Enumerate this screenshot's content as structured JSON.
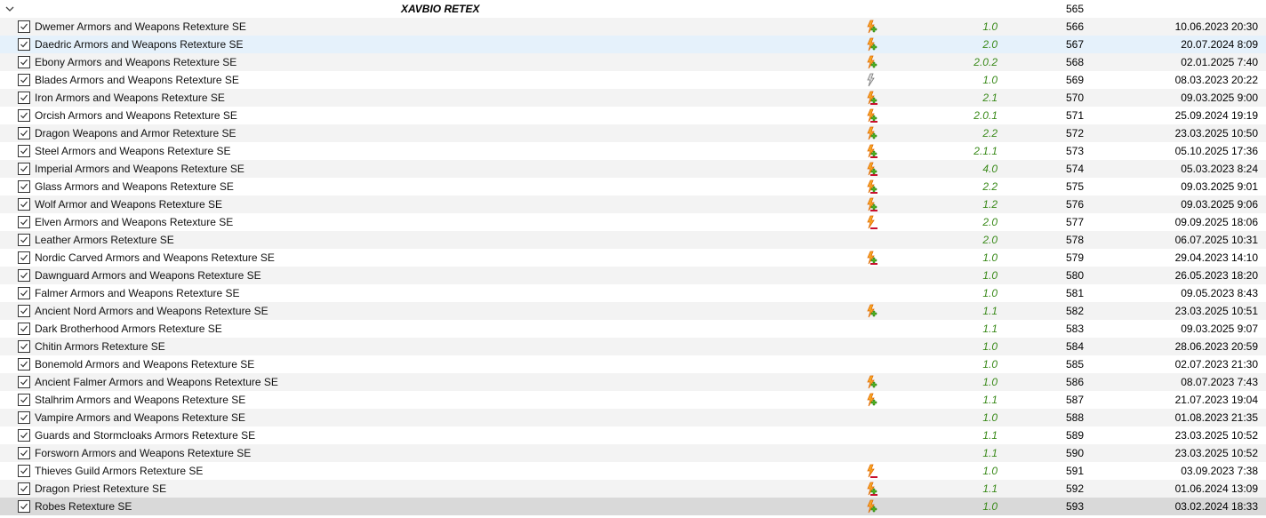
{
  "separator": {
    "title": "XAVBIO RETEX",
    "priority": "565"
  },
  "colors": {
    "version": "#3a8a1a",
    "selected_row": "#e5f1fb",
    "hover_row": "#d9d9d9",
    "alt_row": "#f3f3f3"
  },
  "mods": [
    {
      "name": "Dwemer Armors and Weapons Retexture SE",
      "flag": "flash-plus-icon",
      "version": "1.0",
      "priority": "566",
      "date": "10.06.2023 20:30"
    },
    {
      "name": "Daedric Armors and Weapons Retexture SE",
      "flag": "flash-plus-icon",
      "version": "2.0",
      "priority": "567",
      "date": "20.07.2024 8:09"
    },
    {
      "name": "Ebony Armors and Weapons Retexture SE",
      "flag": "flash-plus-icon",
      "version": "2.0.2",
      "priority": "568",
      "date": "02.01.2025 7:40"
    },
    {
      "name": "Blades Armors and Weapons Retexture SE",
      "flag": "flash-gray-icon",
      "version": "1.0",
      "priority": "569",
      "date": "08.03.2023 20:22"
    },
    {
      "name": "Iron Armors and Weapons Retexture SE",
      "flag": "flash-plus-minus-icon",
      "version": "2.1",
      "priority": "570",
      "date": "09.03.2025 9:00"
    },
    {
      "name": "Orcish Armors and Weapons Retexture SE",
      "flag": "flash-plus-minus-icon",
      "version": "2.0.1",
      "priority": "571",
      "date": "25.09.2024 19:19"
    },
    {
      "name": "Dragon Weapons and Armor Retexture SE",
      "flag": "flash-plus-icon",
      "version": "2.2",
      "priority": "572",
      "date": "23.03.2025 10:50"
    },
    {
      "name": "Steel Armors and Weapons Retexture SE",
      "flag": "flash-plus-minus-icon",
      "version": "2.1.1",
      "priority": "573",
      "date": "05.10.2025 17:36"
    },
    {
      "name": "Imperial Armors and Weapons Retexture SE",
      "flag": "flash-plus-minus-icon",
      "version": "4.0",
      "priority": "574",
      "date": "05.03.2023 8:24"
    },
    {
      "name": "Glass Armors and Weapons Retexture SE",
      "flag": "flash-plus-minus-icon",
      "version": "2.2",
      "priority": "575",
      "date": "09.03.2025 9:01"
    },
    {
      "name": "Wolf Armor and Weapons Retexture SE",
      "flag": "flash-plus-minus-icon",
      "version": "1.2",
      "priority": "576",
      "date": "09.03.2025 9:06"
    },
    {
      "name": "Elven Armors and Weapons Retexture SE",
      "flag": "flash-minus-icon",
      "version": "2.0",
      "priority": "577",
      "date": "09.09.2025 18:06"
    },
    {
      "name": "Leather Armors Retexture SE",
      "flag": "",
      "version": "2.0",
      "priority": "578",
      "date": "06.07.2025 10:31"
    },
    {
      "name": "Nordic Carved Armors and Weapons Retexture SE",
      "flag": "flash-plus-minus-icon",
      "version": "1.0",
      "priority": "579",
      "date": "29.04.2023 14:10"
    },
    {
      "name": "Dawnguard Armors and Weapons Retexture SE",
      "flag": "",
      "version": "1.0",
      "priority": "580",
      "date": "26.05.2023 18:20"
    },
    {
      "name": "Falmer Armors and Weapons Retexture SE",
      "flag": "",
      "version": "1.0",
      "priority": "581",
      "date": "09.05.2023 8:43"
    },
    {
      "name": "Ancient Nord Armors and Weapons Retexture SE",
      "flag": "flash-plus-icon",
      "version": "1.1",
      "priority": "582",
      "date": "23.03.2025 10:51"
    },
    {
      "name": "Dark Brotherhood Armors Retexture SE",
      "flag": "",
      "version": "1.1",
      "priority": "583",
      "date": "09.03.2025 9:07"
    },
    {
      "name": "Chitin Armors Retexture SE",
      "flag": "",
      "version": "1.0",
      "priority": "584",
      "date": "28.06.2023 20:59"
    },
    {
      "name": "Bonemold Armors and Weapons Retexture SE",
      "flag": "",
      "version": "1.0",
      "priority": "585",
      "date": "02.07.2023 21:30"
    },
    {
      "name": "Ancient Falmer Armors and Weapons Retexture SE",
      "flag": "flash-plus-icon",
      "version": "1.0",
      "priority": "586",
      "date": "08.07.2023 7:43"
    },
    {
      "name": "Stalhrim Armors and Weapons Retexture SE",
      "flag": "flash-plus-icon",
      "version": "1.1",
      "priority": "587",
      "date": "21.07.2023 19:04"
    },
    {
      "name": "Vampire Armors and Weapons Retexture SE",
      "flag": "",
      "version": "1.0",
      "priority": "588",
      "date": "01.08.2023 21:35"
    },
    {
      "name": "Guards and Stormcloaks Armors Retexture SE",
      "flag": "",
      "version": "1.1",
      "priority": "589",
      "date": "23.03.2025 10:52"
    },
    {
      "name": "Forsworn Armors and Weapons Retexture SE",
      "flag": "",
      "version": "1.1",
      "priority": "590",
      "date": "23.03.2025 10:52"
    },
    {
      "name": "Thieves Guild Armors Retexture SE",
      "flag": "flash-minus-icon",
      "version": "1.0",
      "priority": "591",
      "date": "03.09.2023 7:38"
    },
    {
      "name": "Dragon Priest Retexture SE",
      "flag": "flash-plus-minus-icon",
      "version": "1.1",
      "priority": "592",
      "date": "01.06.2024 13:09"
    },
    {
      "name": "Robes Retexture SE",
      "flag": "flash-plus-icon",
      "version": "1.0",
      "priority": "593",
      "date": "03.02.2024 18:33"
    }
  ]
}
